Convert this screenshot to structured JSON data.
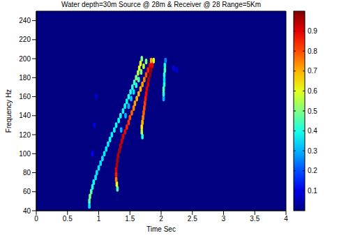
{
  "chart_data": {
    "type": "heatmap",
    "title": "Water depth=30m Source @ 28m & Receiver @ 28 Range=5Km",
    "x_label": "Time Sec",
    "y_label": "Frequency Hz",
    "xlim": [
      0,
      4
    ],
    "xticks": [
      0,
      0.5,
      1,
      1.5,
      2,
      2.5,
      3,
      3.5,
      4
    ],
    "ylim": [
      40,
      250
    ],
    "yticks": [
      40,
      60,
      80,
      100,
      120,
      140,
      160,
      180,
      200,
      220,
      240
    ],
    "grid": false,
    "t_step": 0.04,
    "f_step": 6,
    "colorbar": {
      "range": [
        0,
        1
      ],
      "ticks": [
        0.1,
        0.2,
        0.3,
        0.4,
        0.5,
        0.6,
        0.7,
        0.8,
        0.9
      ]
    },
    "cells": [
      [
        0.85,
        45,
        0.35
      ],
      [
        0.85,
        50,
        0.45
      ],
      [
        0.86,
        55,
        0.5
      ],
      [
        0.88,
        60,
        0.45
      ],
      [
        0.9,
        65,
        0.4
      ],
      [
        0.92,
        70,
        0.38
      ],
      [
        0.95,
        75,
        0.36
      ],
      [
        0.97,
        80,
        0.35
      ],
      [
        1.0,
        85,
        0.35
      ],
      [
        1.03,
        90,
        0.35
      ],
      [
        1.06,
        95,
        0.35
      ],
      [
        1.09,
        100,
        0.36
      ],
      [
        1.12,
        105,
        0.36
      ],
      [
        1.15,
        110,
        0.36
      ],
      [
        1.18,
        115,
        0.37
      ],
      [
        1.21,
        120,
        0.37
      ],
      [
        1.25,
        125,
        0.37
      ],
      [
        1.28,
        130,
        0.38
      ],
      [
        1.32,
        135,
        0.38
      ],
      [
        1.35,
        140,
        0.38
      ],
      [
        1.39,
        145,
        0.38
      ],
      [
        1.42,
        150,
        0.38
      ],
      [
        1.45,
        155,
        0.38
      ],
      [
        1.48,
        160,
        0.4
      ],
      [
        1.51,
        165,
        0.4
      ],
      [
        1.54,
        170,
        0.42
      ],
      [
        1.57,
        175,
        0.45
      ],
      [
        1.6,
        180,
        0.5
      ],
      [
        1.63,
        185,
        0.55
      ],
      [
        1.65,
        190,
        0.6
      ],
      [
        1.67,
        195,
        0.6
      ],
      [
        1.69,
        200,
        0.5
      ],
      [
        0.9,
        100,
        0.12
      ],
      [
        0.93,
        130,
        0.1
      ],
      [
        0.96,
        160,
        0.08
      ],
      [
        1.36,
        125,
        0.3
      ],
      [
        1.43,
        140,
        0.3
      ],
      [
        1.48,
        150,
        0.3
      ],
      [
        1.52,
        158,
        0.32
      ],
      [
        1.56,
        165,
        0.35
      ],
      [
        1.6,
        172,
        0.4
      ],
      [
        1.64,
        178,
        0.45
      ],
      [
        1.68,
        186,
        0.5
      ],
      [
        1.72,
        192,
        0.55
      ],
      [
        1.76,
        197,
        0.5
      ],
      [
        1.3,
        63,
        0.45
      ],
      [
        1.29,
        68,
        0.6
      ],
      [
        1.28,
        73,
        0.75
      ],
      [
        1.28,
        78,
        0.85
      ],
      [
        1.28,
        83,
        0.9
      ],
      [
        1.29,
        88,
        0.95
      ],
      [
        1.3,
        93,
        0.95
      ],
      [
        1.31,
        98,
        0.95
      ],
      [
        1.33,
        103,
        0.95
      ],
      [
        1.35,
        108,
        0.93
      ],
      [
        1.37,
        113,
        0.92
      ],
      [
        1.39,
        118,
        0.9
      ],
      [
        1.42,
        123,
        0.88
      ],
      [
        1.45,
        128,
        0.85
      ],
      [
        1.48,
        133,
        0.83
      ],
      [
        1.5,
        138,
        0.8
      ],
      [
        1.53,
        143,
        0.78
      ],
      [
        1.56,
        148,
        0.75
      ],
      [
        1.58,
        153,
        0.72
      ],
      [
        1.61,
        158,
        0.7
      ],
      [
        1.64,
        163,
        0.7
      ],
      [
        1.67,
        168,
        0.7
      ],
      [
        1.7,
        173,
        0.72
      ],
      [
        1.73,
        178,
        0.75
      ],
      [
        1.76,
        183,
        0.8
      ],
      [
        1.79,
        188,
        0.85
      ],
      [
        1.82,
        193,
        0.9
      ],
      [
        1.84,
        198,
        0.7
      ],
      [
        1.7,
        118,
        0.4
      ],
      [
        1.69,
        123,
        0.55
      ],
      [
        1.69,
        128,
        0.65
      ],
      [
        1.7,
        133,
        0.7
      ],
      [
        1.71,
        138,
        0.75
      ],
      [
        1.72,
        143,
        0.78
      ],
      [
        1.73,
        148,
        0.8
      ],
      [
        1.74,
        153,
        0.82
      ],
      [
        1.75,
        158,
        0.85
      ],
      [
        1.76,
        163,
        0.88
      ],
      [
        1.77,
        168,
        0.9
      ],
      [
        1.79,
        173,
        0.92
      ],
      [
        1.8,
        178,
        0.95
      ],
      [
        1.82,
        183,
        0.97
      ],
      [
        1.84,
        188,
        0.97
      ],
      [
        1.86,
        193,
        0.9
      ],
      [
        1.88,
        198,
        0.6
      ],
      [
        2.04,
        158,
        0.3
      ],
      [
        2.04,
        163,
        0.4
      ],
      [
        2.04,
        168,
        0.45
      ],
      [
        2.05,
        173,
        0.4
      ],
      [
        2.05,
        178,
        0.35
      ],
      [
        2.05,
        183,
        0.4
      ],
      [
        2.06,
        188,
        0.45
      ],
      [
        2.06,
        193,
        0.4
      ],
      [
        2.07,
        198,
        0.25
      ],
      [
        2.2,
        190,
        0.1
      ],
      [
        2.25,
        188,
        0.08
      ]
    ]
  }
}
